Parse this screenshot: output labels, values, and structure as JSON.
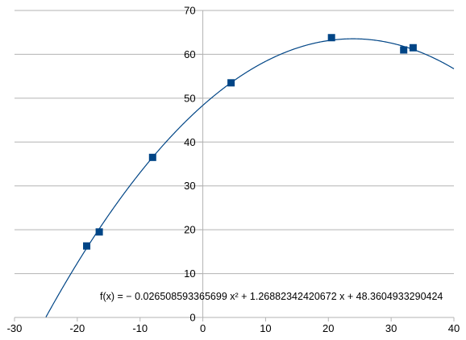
{
  "chart_data": {
    "type": "scatter",
    "title": "",
    "xlabel": "",
    "ylabel": "",
    "xlim": [
      -30,
      40
    ],
    "ylim": [
      0,
      70
    ],
    "x_ticks": [
      -30,
      -20,
      -10,
      0,
      10,
      20,
      30,
      40
    ],
    "y_ticks": [
      0,
      10,
      20,
      30,
      40,
      50,
      60,
      70
    ],
    "x_tick_labels": [
      "-30",
      "-20",
      "-10",
      "0",
      "10",
      "20",
      "30",
      "40"
    ],
    "y_tick_labels": [
      "0",
      "10",
      "20",
      "30",
      "40",
      "50",
      "60",
      "70"
    ],
    "grid": "horizontal",
    "legend": "none",
    "series": [
      {
        "x": [
          -18.5,
          -16.5,
          -8,
          4.5,
          20.5,
          32,
          33.5
        ],
        "y": [
          16.3,
          19.5,
          36.5,
          53.5,
          63.8,
          61.0,
          61.5
        ],
        "marker": "square",
        "color": "#004586"
      }
    ],
    "trendline": {
      "type": "polynomial",
      "coefficients": [
        -0.026508593365699,
        1.26882342420672,
        48.3604933290424
      ],
      "color": "#004586",
      "equation": "f(x) = − 0.026508593365699 x² + 1.26882342420672 x + 48.3604933290424"
    }
  }
}
